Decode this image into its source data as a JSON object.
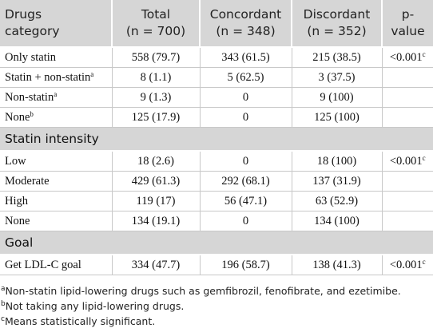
{
  "table": {
    "header": [
      {
        "name": "Drugs",
        "sub": "category"
      },
      {
        "name": "Total",
        "sub": "(n = 700)"
      },
      {
        "name": "Concordant",
        "sub": "(n = 348)"
      },
      {
        "name": "Discordant",
        "sub": "(n = 352)"
      },
      {
        "name": "p-",
        "sub": "value"
      }
    ],
    "groups": [
      {
        "rows": [
          {
            "label": "Only statin",
            "cells": [
              "558 (79.7)",
              "343 (61.5)",
              "215 (38.5)"
            ],
            "p": "<0.001",
            "p_sup": "c"
          },
          {
            "label": "Statin + non-statin",
            "label_sup": "a",
            "cells": [
              "8 (1.1)",
              "5 (62.5)",
              "3 (37.5)"
            ]
          },
          {
            "label": "Non-statin",
            "label_sup": "a",
            "cells": [
              "9 (1.3)",
              "0",
              "9 (100)"
            ]
          },
          {
            "label": "None",
            "label_sup": "b",
            "cells": [
              "125 (17.9)",
              "0",
              "125 (100)"
            ]
          }
        ]
      },
      {
        "title": "Statin intensity",
        "rows": [
          {
            "label": "Low",
            "cells": [
              "18 (2.6)",
              "0",
              "18 (100)"
            ],
            "p": "<0.001",
            "p_sup": "c"
          },
          {
            "label": "Moderate",
            "cells": [
              "429 (61.3)",
              "292 (68.1)",
              "137 (31.9)"
            ]
          },
          {
            "label": "High",
            "cells": [
              "119 (17)",
              "56 (47.1)",
              "63 (52.9)"
            ]
          },
          {
            "label": "None",
            "cells": [
              "134 (19.1)",
              "0",
              "134 (100)"
            ]
          }
        ]
      },
      {
        "title": "Goal",
        "rows": [
          {
            "label": "Get LDL-C goal",
            "cells": [
              "334 (47.7)",
              "196 (58.7)",
              "138 (41.3)"
            ],
            "p": "<0.001",
            "p_sup": "c"
          }
        ]
      }
    ]
  },
  "footnotes": [
    {
      "mark": "a",
      "text": "Non-statin lipid-lowering drugs such as gemfibrozil, fenofibrate, and ezetimibe."
    },
    {
      "mark": "b",
      "text": "Not taking any lipid-lowering drugs."
    },
    {
      "mark": "c",
      "text": "Means statistically significant."
    }
  ]
}
